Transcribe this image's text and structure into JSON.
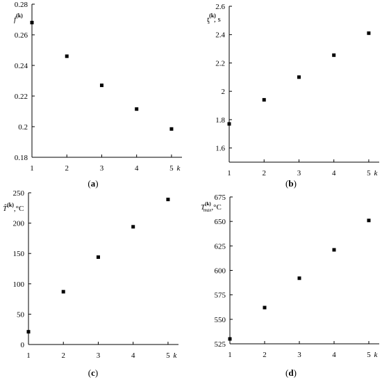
{
  "chart_data": [
    {
      "type": "scatter",
      "label": "(a)",
      "x_label": "k",
      "y_label_html": "f (k)",
      "x": [
        1,
        2,
        3,
        4,
        5
      ],
      "y": [
        0.268,
        0.246,
        0.227,
        0.2115,
        0.1985
      ],
      "xlim": [
        1,
        5.3
      ],
      "ylim": [
        0.18,
        0.28
      ],
      "xticks": [
        1,
        2,
        3,
        4,
        5
      ],
      "yticks": [
        "0.18",
        "0.2",
        "0.22",
        "0.24",
        "0.26",
        "0.28"
      ],
      "ytick_values": [
        0.18,
        0.2,
        0.22,
        0.24,
        0.26,
        0.28
      ]
    },
    {
      "type": "scatter",
      "label": "(b)",
      "x_label": "k",
      "y_label_html": "t_s^(k), s",
      "x": [
        1,
        2,
        3,
        4,
        5
      ],
      "y": [
        1.77,
        1.94,
        2.1,
        2.255,
        2.41
      ],
      "xlim": [
        1,
        5.3
      ],
      "ylim": [
        1.5,
        2.6
      ],
      "xticks": [
        1,
        2,
        3,
        4,
        5
      ],
      "yticks": [
        "1.6",
        "1.8",
        "2",
        "2.2",
        "2.4",
        "2.6"
      ],
      "ytick_values": [
        1.6,
        1.8,
        2.0,
        2.2,
        2.4,
        2.6
      ]
    },
    {
      "type": "scatter",
      "label": "(c)",
      "x_label": "k",
      "y_label_html": "T^(k), °C",
      "x": [
        1,
        2,
        3,
        4,
        5
      ],
      "y": [
        21,
        87,
        144,
        194,
        239
      ],
      "xlim": [
        1,
        5.3
      ],
      "ylim": [
        0,
        250
      ],
      "xticks": [
        1,
        2,
        3,
        4,
        5
      ],
      "yticks": [
        "0",
        "50",
        "100",
        "150",
        "200",
        "250"
      ],
      "ytick_values": [
        0,
        50,
        100,
        150,
        200,
        250
      ]
    },
    {
      "type": "scatter",
      "label": "(d)",
      "x_label": "k",
      "y_label_html": "T_max^(k), °C",
      "x": [
        1,
        2,
        3,
        4,
        5
      ],
      "y": [
        530,
        562,
        592,
        621,
        651
      ],
      "xlim": [
        1,
        5.3
      ],
      "ylim": [
        525,
        675
      ],
      "xticks": [
        1,
        2,
        3,
        4,
        5
      ],
      "yticks": [
        "525",
        "550",
        "575",
        "600",
        "625",
        "650",
        "675"
      ],
      "ytick_values": [
        525,
        550,
        575,
        600,
        625,
        650,
        675
      ]
    }
  ]
}
